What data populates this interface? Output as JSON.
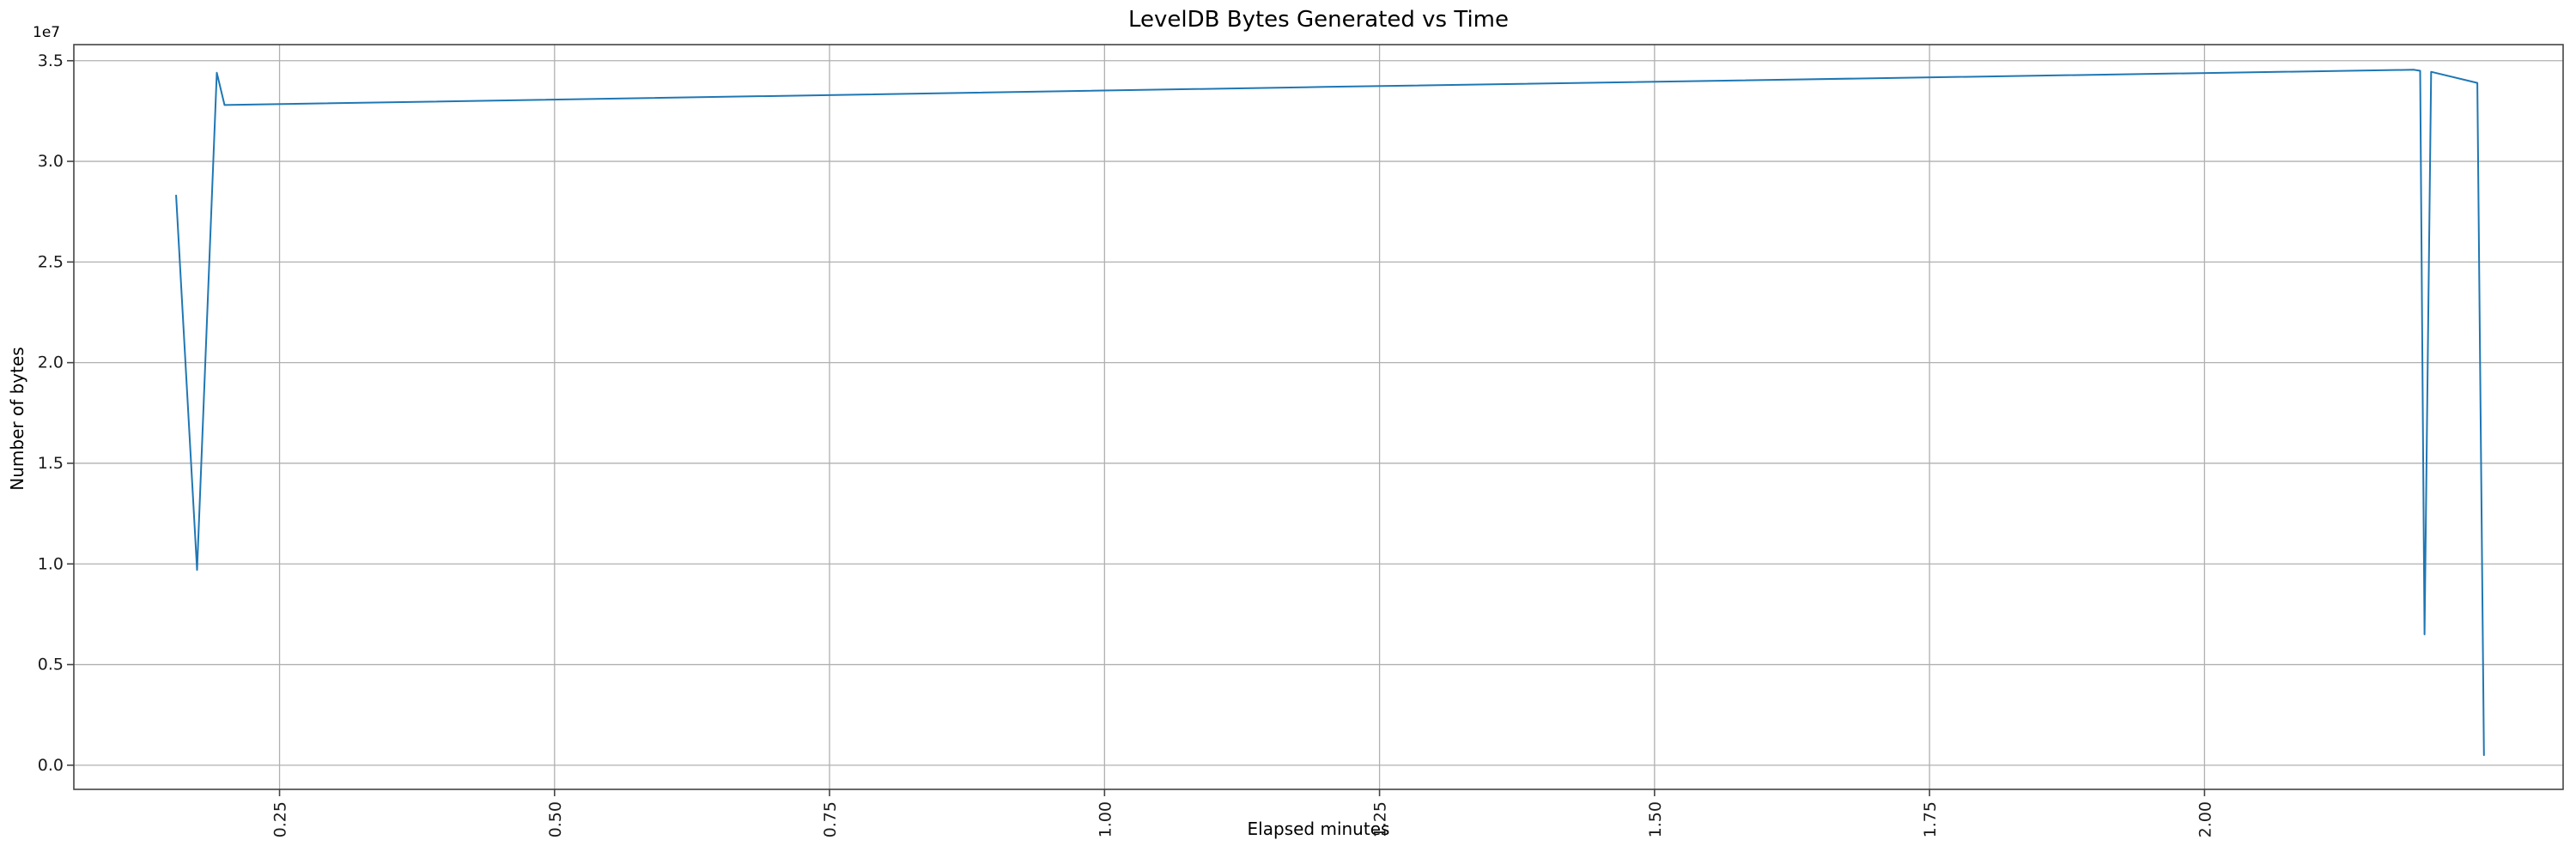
{
  "chart_data": {
    "type": "line",
    "title": "LevelDB Bytes Generated vs Time",
    "xlabel": "Elapsed minutes",
    "ylabel": "Number of bytes",
    "y_offset_label": "1e7",
    "legend": "none",
    "grid": true,
    "line_color": "#1f77b4",
    "grid_color": "#b0b0b0",
    "spine_color": "#444444",
    "xlim": [
      0.063,
      2.326
    ],
    "ylim": [
      -1200000,
      35800000
    ],
    "xtick_values": [
      0.25,
      0.5,
      0.75,
      1.0,
      1.25,
      1.5,
      1.75,
      2.0
    ],
    "xtick_labels": [
      "0.25",
      "0.50",
      "0.75",
      "1.00",
      "1.25",
      "1.50",
      "1.75",
      "2.00"
    ],
    "ytick_values": [
      0,
      5000000,
      10000000,
      15000000,
      20000000,
      25000000,
      30000000,
      35000000
    ],
    "ytick_labels": [
      "0.0",
      "0.5",
      "1.0",
      "1.5",
      "2.0",
      "2.5",
      "3.0",
      "3.5"
    ],
    "points": [
      [
        0.156,
        28300000
      ],
      [
        0.175,
        9700000
      ],
      [
        0.193,
        34400000
      ],
      [
        0.2,
        32800000
      ],
      [
        1.2,
        33700000
      ],
      [
        2.19,
        34550000
      ],
      [
        2.196,
        34500000
      ],
      [
        2.2,
        6500000
      ],
      [
        2.206,
        34450000
      ],
      [
        2.248,
        33900000
      ],
      [
        2.254,
        500000
      ]
    ]
  }
}
